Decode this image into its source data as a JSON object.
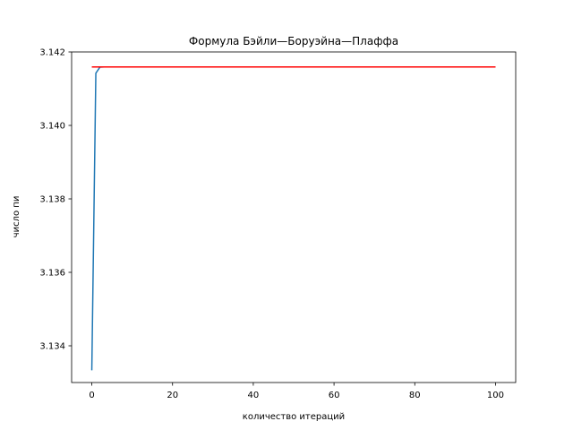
{
  "chart_data": {
    "type": "line",
    "title": "Формула Бэйли—Боруэйна—Плаффа",
    "xlabel": "количество итераций",
    "ylabel": "число пи",
    "xlim": [
      -5,
      105
    ],
    "ylim": [
      3.133,
      3.142
    ],
    "xticks": [
      0,
      20,
      40,
      60,
      80,
      100
    ],
    "xtick_labels": [
      "0",
      "20",
      "40",
      "60",
      "80",
      "100"
    ],
    "yticks": [
      3.134,
      3.136,
      3.138,
      3.14,
      3.142
    ],
    "ytick_labels": [
      "3.134",
      "3.136",
      "3.138",
      "3.140",
      "3.142"
    ],
    "grid": false,
    "series": [
      {
        "color": "#1f77b4",
        "x": [
          0,
          1,
          2,
          3,
          4,
          5,
          6,
          7,
          8,
          9,
          10,
          15,
          20,
          30,
          40,
          50,
          60,
          70,
          80,
          90,
          100
        ],
        "y": [
          3.133333,
          3.141422,
          3.141584,
          3.141592,
          3.141593,
          3.141593,
          3.141593,
          3.141593,
          3.141593,
          3.141593,
          3.141593,
          3.141593,
          3.141593,
          3.141593,
          3.141593,
          3.141593,
          3.141593,
          3.141593,
          3.141593,
          3.141593,
          3.141593
        ]
      },
      {
        "color": "#ff0000",
        "x": [
          0,
          100
        ],
        "y": [
          3.141593,
          3.141593
        ]
      }
    ]
  }
}
